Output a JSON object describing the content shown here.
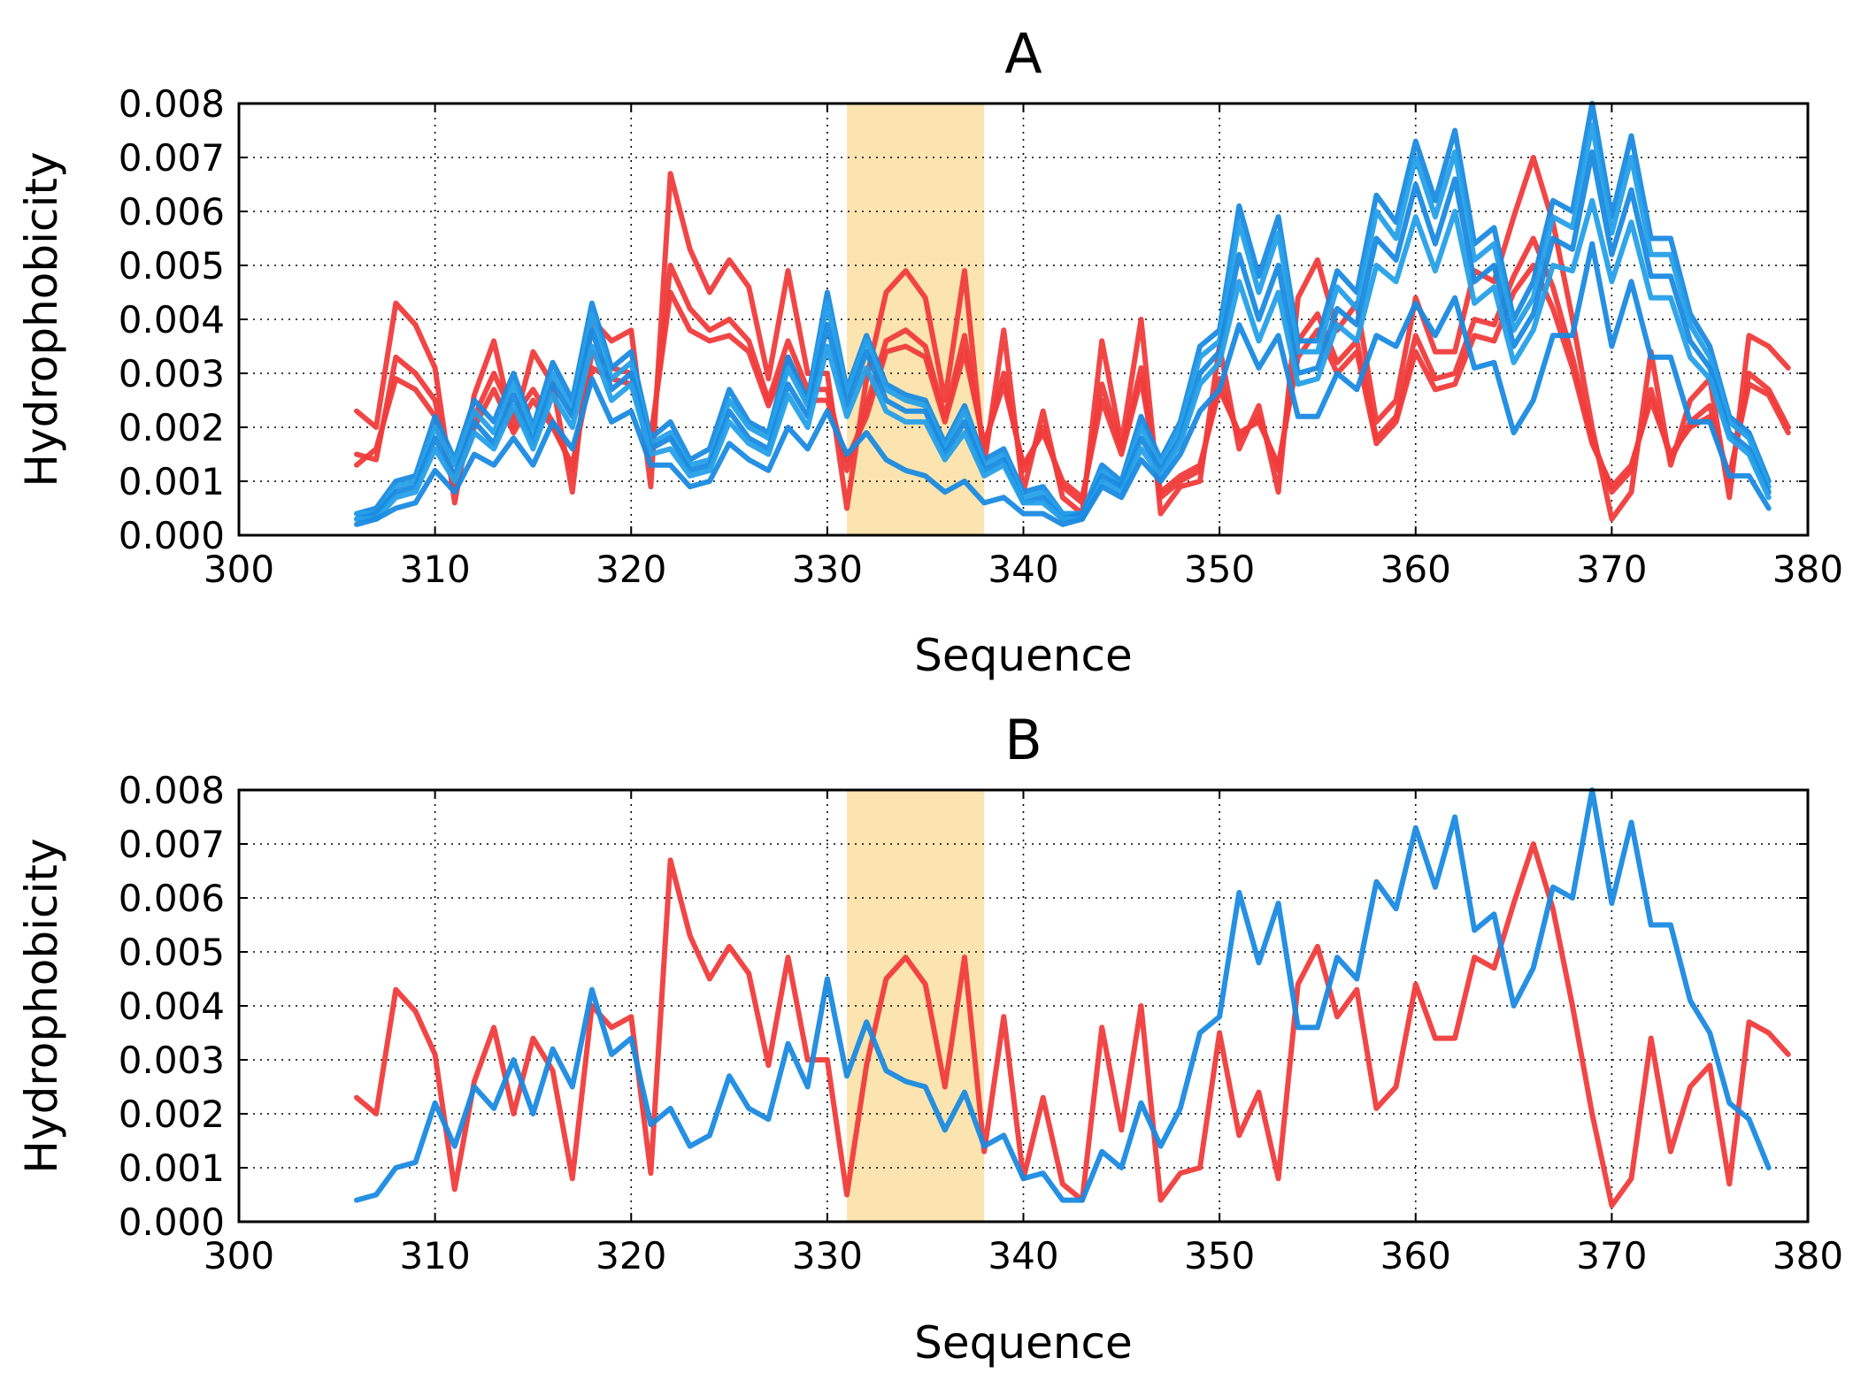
{
  "chart_data": [
    {
      "type": "line",
      "title": "A",
      "xlabel": "Sequence",
      "ylabel": "Hydrophobicity",
      "xlim": [
        300,
        380
      ],
      "ylim": [
        0.0,
        0.008
      ],
      "xticks": [
        "300",
        "310",
        "320",
        "330",
        "340",
        "350",
        "360",
        "370",
        "380"
      ],
      "yticks": [
        "0.000",
        "0.001",
        "0.002",
        "0.003",
        "0.004",
        "0.005",
        "0.006",
        "0.007",
        "0.008"
      ],
      "grid": true,
      "highlight_region": {
        "x": [
          331,
          338
        ],
        "color": "#fce4b0"
      },
      "colors": {
        "red": "#f03c3c",
        "blue": "#1a8ae0",
        "blue_light": "#26a0e8"
      },
      "x_start": 306,
      "series": [
        {
          "name": "red-1",
          "color": "#f03c3c",
          "values": [
            0.0023,
            0.002,
            0.0043,
            0.0039,
            0.0031,
            0.0006,
            0.0026,
            0.0036,
            0.002,
            0.0034,
            0.0028,
            0.0008,
            0.004,
            0.0036,
            0.0038,
            0.0009,
            0.0067,
            0.0053,
            0.0045,
            0.0051,
            0.0046,
            0.0029,
            0.0049,
            0.003,
            0.003,
            0.0005,
            0.0029,
            0.0045,
            0.0049,
            0.0044,
            0.0025,
            0.0049,
            0.0013,
            0.0038,
            0.0008,
            0.0023,
            0.0007,
            0.0004,
            0.0036,
            0.0017,
            0.004,
            0.0004,
            0.0009,
            0.001,
            0.0035,
            0.0016,
            0.0024,
            0.0008,
            0.0044,
            0.0051,
            0.0038,
            0.0043,
            0.0021,
            0.0025,
            0.0044,
            0.0034,
            0.0034,
            0.0049,
            0.0047,
            0.0059,
            0.007,
            0.0058,
            0.004,
            0.002,
            0.0003,
            0.0008,
            0.0034,
            0.0013,
            0.0025,
            0.0029,
            0.0007,
            0.0037,
            0.0035,
            0.0031
          ]
        },
        {
          "name": "red-2",
          "color": "#f03c3c",
          "values": [
            0.0015,
            0.0014,
            0.0033,
            0.003,
            0.0025,
            0.0008,
            0.0022,
            0.003,
            0.0022,
            0.0027,
            0.0021,
            0.0012,
            0.0034,
            0.0031,
            0.003,
            0.0016,
            0.005,
            0.0042,
            0.0038,
            0.004,
            0.0036,
            0.0025,
            0.0036,
            0.0027,
            0.0027,
            0.0012,
            0.0024,
            0.0036,
            0.0038,
            0.0035,
            0.0022,
            0.0037,
            0.0016,
            0.003,
            0.0012,
            0.002,
            0.0009,
            0.0006,
            0.0028,
            0.0016,
            0.0031,
            0.0007,
            0.001,
            0.0012,
            0.0029,
            0.0018,
            0.0022,
            0.0012,
            0.0036,
            0.0041,
            0.0032,
            0.0036,
            0.0018,
            0.0022,
            0.0037,
            0.0029,
            0.003,
            0.004,
            0.0039,
            0.0048,
            0.0055,
            0.0046,
            0.0033,
            0.0018,
            0.0008,
            0.0012,
            0.0027,
            0.0014,
            0.0021,
            0.0024,
            0.001,
            0.003,
            0.0027,
            0.002
          ]
        },
        {
          "name": "red-3",
          "color": "#f03c3c",
          "values": [
            0.0013,
            0.0016,
            0.0029,
            0.0027,
            0.0022,
            0.001,
            0.002,
            0.0027,
            0.0019,
            0.0025,
            0.002,
            0.0013,
            0.0031,
            0.0029,
            0.0028,
            0.0018,
            0.0045,
            0.0038,
            0.0036,
            0.0037,
            0.0034,
            0.0024,
            0.0033,
            0.0025,
            0.0025,
            0.0014,
            0.0022,
            0.0034,
            0.0035,
            0.0033,
            0.0021,
            0.0034,
            0.0017,
            0.0028,
            0.0013,
            0.0019,
            0.001,
            0.0007,
            0.0025,
            0.0015,
            0.0029,
            0.0008,
            0.0011,
            0.0013,
            0.0027,
            0.0019,
            0.0021,
            0.0013,
            0.0033,
            0.0038,
            0.003,
            0.0034,
            0.0017,
            0.0021,
            0.0034,
            0.0027,
            0.0028,
            0.0037,
            0.0036,
            0.0045,
            0.005,
            0.0042,
            0.0031,
            0.0017,
            0.0009,
            0.0013,
            0.0025,
            0.0015,
            0.002,
            0.0022,
            0.0011,
            0.0028,
            0.0026,
            0.0019
          ]
        },
        {
          "name": "blue-1",
          "color": "#1a8ae0",
          "values": [
            0.0004,
            0.0005,
            0.001,
            0.0011,
            0.0022,
            0.0014,
            0.0025,
            0.0021,
            0.003,
            0.002,
            0.0032,
            0.0025,
            0.0043,
            0.0031,
            0.0034,
            0.0018,
            0.0021,
            0.0014,
            0.0016,
            0.0027,
            0.0021,
            0.0019,
            0.0033,
            0.0025,
            0.0045,
            0.0027,
            0.0037,
            0.0028,
            0.0026,
            0.0025,
            0.0017,
            0.0024,
            0.0014,
            0.0016,
            0.0008,
            0.0009,
            0.0004,
            0.0004,
            0.0013,
            0.001,
            0.0022,
            0.0014,
            0.0021,
            0.0035,
            0.0038,
            0.0061,
            0.0048,
            0.0059,
            0.0036,
            0.0036,
            0.0049,
            0.0045,
            0.0063,
            0.0058,
            0.0073,
            0.0062,
            0.0075,
            0.0054,
            0.0057,
            0.004,
            0.0047,
            0.0062,
            0.006,
            0.008,
            0.0059,
            0.0074,
            0.0055,
            0.0055,
            0.0041,
            0.0035,
            0.0022,
            0.0019,
            0.001
          ]
        },
        {
          "name": "blue-2",
          "color": "#26a0e8",
          "values": [
            0.0004,
            0.0004,
            0.0009,
            0.001,
            0.002,
            0.0013,
            0.0023,
            0.0019,
            0.0028,
            0.0019,
            0.003,
            0.0023,
            0.0041,
            0.0029,
            0.0032,
            0.0017,
            0.0019,
            0.0013,
            0.0014,
            0.0025,
            0.002,
            0.0018,
            0.0031,
            0.0024,
            0.0043,
            0.0026,
            0.0036,
            0.0027,
            0.0025,
            0.0024,
            0.0016,
            0.0023,
            0.0013,
            0.0015,
            0.0007,
            0.0008,
            0.0004,
            0.0004,
            0.0012,
            0.0009,
            0.002,
            0.0013,
            0.002,
            0.0033,
            0.0036,
            0.0058,
            0.0045,
            0.0056,
            0.0034,
            0.0034,
            0.0046,
            0.0042,
            0.006,
            0.0055,
            0.007,
            0.0059,
            0.0071,
            0.0051,
            0.0054,
            0.0038,
            0.0044,
            0.0059,
            0.0057,
            0.0076,
            0.0056,
            0.007,
            0.0052,
            0.0052,
            0.0039,
            0.0033,
            0.0021,
            0.0018,
            0.0009
          ]
        },
        {
          "name": "blue-3",
          "color": "#1a8ae0",
          "values": [
            0.0003,
            0.0004,
            0.0008,
            0.0009,
            0.0018,
            0.0011,
            0.0021,
            0.0017,
            0.0026,
            0.0017,
            0.0028,
            0.0022,
            0.0038,
            0.0027,
            0.003,
            0.0016,
            0.0018,
            0.0012,
            0.0013,
            0.0023,
            0.0018,
            0.0016,
            0.0028,
            0.0022,
            0.0039,
            0.0024,
            0.0034,
            0.0025,
            0.0023,
            0.0023,
            0.0015,
            0.0021,
            0.0012,
            0.0014,
            0.0006,
            0.0007,
            0.0003,
            0.0004,
            0.0011,
            0.0009,
            0.0018,
            0.0012,
            0.0018,
            0.003,
            0.0034,
            0.0052,
            0.004,
            0.005,
            0.003,
            0.0031,
            0.0042,
            0.0039,
            0.0055,
            0.0051,
            0.0065,
            0.0054,
            0.0066,
            0.0047,
            0.005,
            0.0035,
            0.0041,
            0.0055,
            0.0053,
            0.0071,
            0.0052,
            0.0064,
            0.0048,
            0.0048,
            0.0036,
            0.0031,
            0.0019,
            0.0016,
            0.0008
          ]
        },
        {
          "name": "blue-4",
          "color": "#26a0e8",
          "values": [
            0.0003,
            0.0003,
            0.0007,
            0.0008,
            0.0016,
            0.001,
            0.0019,
            0.0016,
            0.0024,
            0.0016,
            0.0026,
            0.002,
            0.0035,
            0.0025,
            0.0028,
            0.0015,
            0.0016,
            0.0011,
            0.0012,
            0.0021,
            0.0017,
            0.0015,
            0.0026,
            0.002,
            0.0035,
            0.0022,
            0.0031,
            0.0023,
            0.0021,
            0.0021,
            0.0014,
            0.0019,
            0.0011,
            0.0013,
            0.0006,
            0.0006,
            0.0003,
            0.0003,
            0.001,
            0.0008,
            0.0016,
            0.0011,
            0.0017,
            0.0028,
            0.0032,
            0.0047,
            0.0036,
            0.0045,
            0.0028,
            0.0029,
            0.0039,
            0.0036,
            0.005,
            0.0047,
            0.0059,
            0.0049,
            0.006,
            0.0043,
            0.0046,
            0.0032,
            0.0038,
            0.005,
            0.0049,
            0.0062,
            0.0047,
            0.0058,
            0.0044,
            0.0044,
            0.0033,
            0.0029,
            0.0018,
            0.0015,
            0.0007
          ]
        },
        {
          "name": "blue-5",
          "color": "#1a8ae0",
          "values": [
            0.0002,
            0.0003,
            0.0005,
            0.0006,
            0.0012,
            0.0008,
            0.0015,
            0.0013,
            0.0018,
            0.0013,
            0.0021,
            0.0016,
            0.0029,
            0.0021,
            0.0023,
            0.0013,
            0.0013,
            0.0009,
            0.001,
            0.0017,
            0.0014,
            0.0012,
            0.002,
            0.0016,
            0.0023,
            0.0015,
            0.0019,
            0.0014,
            0.0012,
            0.0011,
            0.0008,
            0.001,
            0.0006,
            0.0007,
            0.0004,
            0.0004,
            0.0002,
            0.0003,
            0.0009,
            0.0007,
            0.0014,
            0.001,
            0.0015,
            0.0023,
            0.0027,
            0.0039,
            0.0031,
            0.0037,
            0.0022,
            0.0022,
            0.003,
            0.0027,
            0.0037,
            0.0035,
            0.0043,
            0.0037,
            0.0044,
            0.0031,
            0.0032,
            0.0019,
            0.0025,
            0.0037,
            0.0037,
            0.0054,
            0.0035,
            0.0047,
            0.0033,
            0.0033,
            0.0021,
            0.0021,
            0.0011,
            0.0011,
            0.0005
          ]
        }
      ]
    },
    {
      "type": "line",
      "title": "B",
      "xlabel": "Sequence",
      "ylabel": "Hydrophobicity",
      "xlim": [
        300,
        380
      ],
      "ylim": [
        0.0,
        0.008
      ],
      "xticks": [
        "300",
        "310",
        "320",
        "330",
        "340",
        "350",
        "360",
        "370",
        "380"
      ],
      "yticks": [
        "0.000",
        "0.001",
        "0.002",
        "0.003",
        "0.004",
        "0.005",
        "0.006",
        "0.007",
        "0.008"
      ],
      "grid": true,
      "highlight_region": {
        "x": [
          331,
          338
        ],
        "color": "#fce4b0"
      },
      "x_start": 306,
      "series": [
        {
          "name": "red",
          "color": "#f03c3c",
          "values": [
            0.0023,
            0.002,
            0.0043,
            0.0039,
            0.0031,
            0.0006,
            0.0026,
            0.0036,
            0.002,
            0.0034,
            0.0028,
            0.0008,
            0.004,
            0.0036,
            0.0038,
            0.0009,
            0.0067,
            0.0053,
            0.0045,
            0.0051,
            0.0046,
            0.0029,
            0.0049,
            0.003,
            0.003,
            0.0005,
            0.0029,
            0.0045,
            0.0049,
            0.0044,
            0.0025,
            0.0049,
            0.0013,
            0.0038,
            0.0008,
            0.0023,
            0.0007,
            0.0004,
            0.0036,
            0.0017,
            0.004,
            0.0004,
            0.0009,
            0.001,
            0.0035,
            0.0016,
            0.0024,
            0.0008,
            0.0044,
            0.0051,
            0.0038,
            0.0043,
            0.0021,
            0.0025,
            0.0044,
            0.0034,
            0.0034,
            0.0049,
            0.0047,
            0.0059,
            0.007,
            0.0058,
            0.004,
            0.002,
            0.0003,
            0.0008,
            0.0034,
            0.0013,
            0.0025,
            0.0029,
            0.0007,
            0.0037,
            0.0035,
            0.0031
          ]
        },
        {
          "name": "blue",
          "color": "#1a8ae0",
          "values": [
            0.0004,
            0.0005,
            0.001,
            0.0011,
            0.0022,
            0.0014,
            0.0025,
            0.0021,
            0.003,
            0.002,
            0.0032,
            0.0025,
            0.0043,
            0.0031,
            0.0034,
            0.0018,
            0.0021,
            0.0014,
            0.0016,
            0.0027,
            0.0021,
            0.0019,
            0.0033,
            0.0025,
            0.0045,
            0.0027,
            0.0037,
            0.0028,
            0.0026,
            0.0025,
            0.0017,
            0.0024,
            0.0014,
            0.0016,
            0.0008,
            0.0009,
            0.0004,
            0.0004,
            0.0013,
            0.001,
            0.0022,
            0.0014,
            0.0021,
            0.0035,
            0.0038,
            0.0061,
            0.0048,
            0.0059,
            0.0036,
            0.0036,
            0.0049,
            0.0045,
            0.0063,
            0.0058,
            0.0073,
            0.0062,
            0.0075,
            0.0054,
            0.0057,
            0.004,
            0.0047,
            0.0062,
            0.006,
            0.008,
            0.0059,
            0.0074,
            0.0055,
            0.0055,
            0.0041,
            0.0035,
            0.0022,
            0.0019,
            0.001
          ]
        }
      ]
    }
  ]
}
